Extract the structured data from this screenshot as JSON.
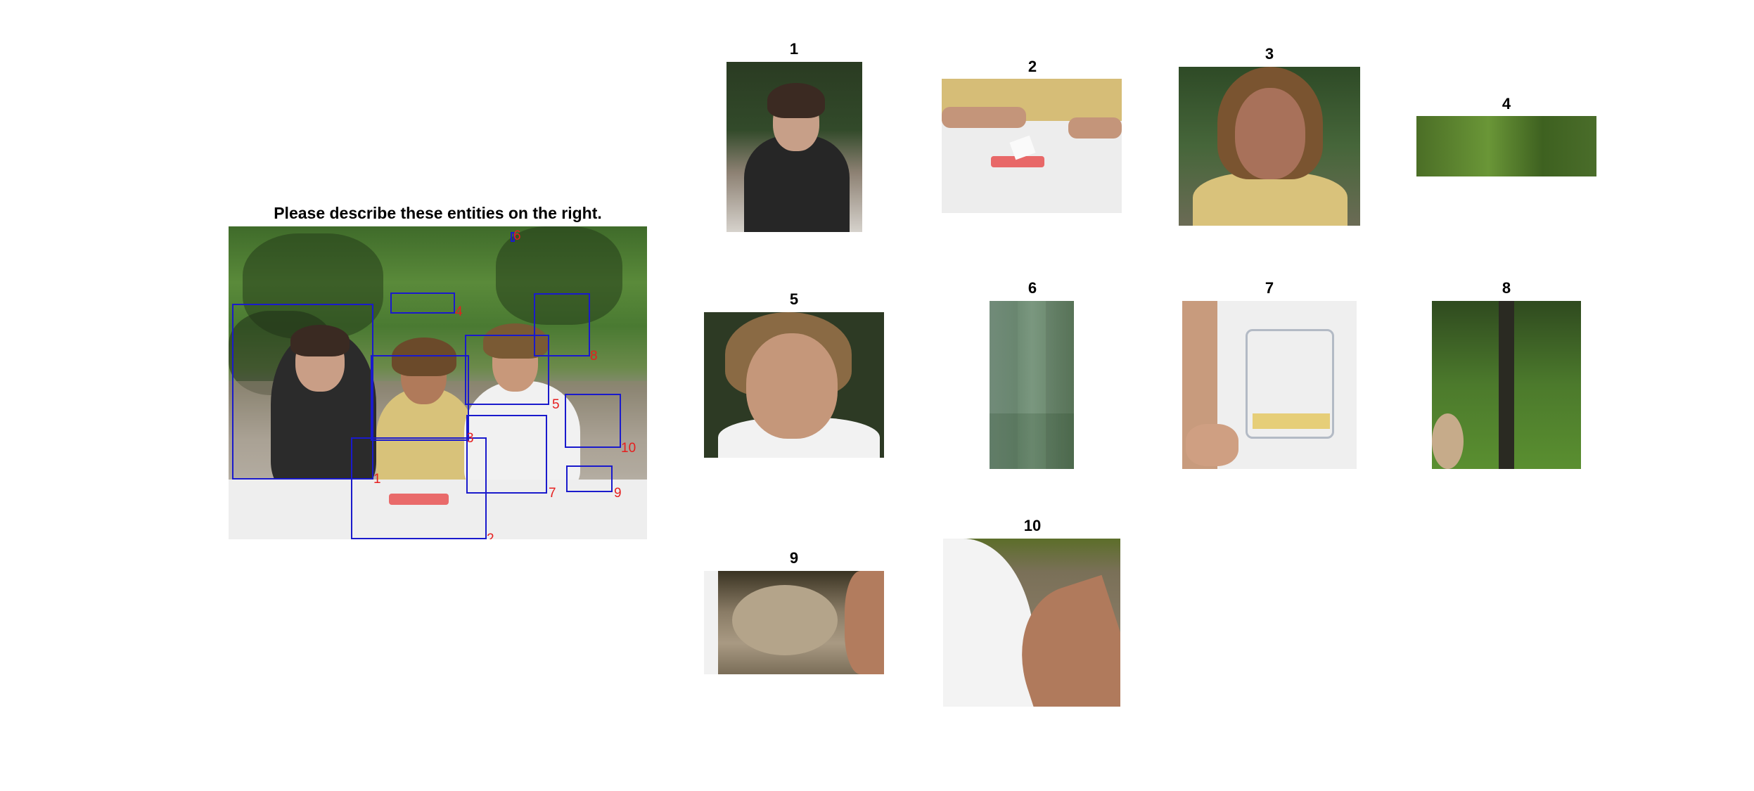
{
  "title": "Please describe these entities on the right.",
  "colors": {
    "box_border": "#1a1acc",
    "box_label": "#e61e1e"
  },
  "main_image": {
    "boxes": [
      {
        "id": 1,
        "label": "1"
      },
      {
        "id": 2,
        "label": "2"
      },
      {
        "id": 3,
        "label": "3"
      },
      {
        "id": 4,
        "label": "4"
      },
      {
        "id": 5,
        "label": "5"
      },
      {
        "id": 6,
        "label": "6"
      },
      {
        "id": 7,
        "label": "7"
      },
      {
        "id": 8,
        "label": "8"
      },
      {
        "id": 9,
        "label": "9"
      },
      {
        "id": 10,
        "label": "10"
      }
    ]
  },
  "crops": [
    {
      "title": "1",
      "subject": "woman-in-black-vest"
    },
    {
      "title": "2",
      "subject": "table-with-candy-box"
    },
    {
      "title": "3",
      "subject": "man-in-yellow-shirt-face"
    },
    {
      "title": "4",
      "subject": "green-foliage"
    },
    {
      "title": "5",
      "subject": "young-man-face"
    },
    {
      "title": "6",
      "subject": "green-gray-patch"
    },
    {
      "title": "7",
      "subject": "white-printed-tshirt"
    },
    {
      "title": "8",
      "subject": "blurred-tree-trunk"
    },
    {
      "title": "9",
      "subject": "blurred-stone"
    },
    {
      "title": "10",
      "subject": "arm-and-shoulder"
    }
  ]
}
